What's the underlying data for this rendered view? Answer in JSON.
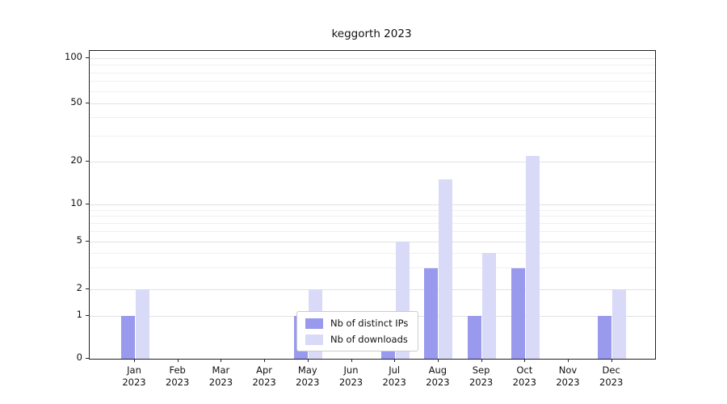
{
  "title": "keggorth 2023",
  "chart_data": {
    "type": "bar",
    "title": "keggorth 2023",
    "categories": [
      "Jan",
      "Feb",
      "Mar",
      "Apr",
      "May",
      "Jun",
      "Jul",
      "Aug",
      "Sep",
      "Oct",
      "Nov",
      "Dec"
    ],
    "year_label": "2023",
    "series": [
      {
        "name": "Nb of distinct IPs",
        "color": "#9999ee",
        "values": [
          1,
          0,
          0,
          0,
          1,
          0,
          1,
          3,
          1,
          3,
          0,
          1
        ]
      },
      {
        "name": "Nb of downloads",
        "color": "#d9d9f8",
        "values": [
          2,
          0,
          0,
          0,
          2,
          0,
          5,
          15,
          4,
          22,
          0,
          2
        ]
      }
    ],
    "yticks": [
      0,
      1,
      2,
      5,
      10,
      20,
      50,
      100
    ],
    "minor_yticks": [
      3,
      4,
      6,
      7,
      8,
      9,
      30,
      40,
      60,
      70,
      80,
      90
    ],
    "ylim": [
      0,
      100
    ],
    "scale": "symlog",
    "grid": true,
    "legend_position": "lower center"
  }
}
